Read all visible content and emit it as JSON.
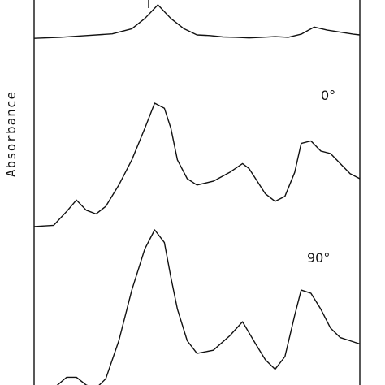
{
  "chart_data": {
    "type": "line",
    "ylabel": "Absorbance",
    "xlabel": "",
    "title": "",
    "grid": false,
    "legend": "none",
    "series": [
      {
        "label": "",
        "x": [
          0,
          0.08,
          0.16,
          0.24,
          0.3,
          0.34,
          0.38,
          0.42,
          0.46,
          0.5,
          0.54,
          0.58,
          0.62,
          0.66,
          0.7,
          0.74,
          0.78,
          0.82,
          0.86,
          0.9,
          0.94,
          0.98,
          1.0
        ],
        "y": [
          0.02,
          0.05,
          0.1,
          0.15,
          0.3,
          0.6,
          1.0,
          0.6,
          0.3,
          0.12,
          0.1,
          0.06,
          0.05,
          0.03,
          0.05,
          0.07,
          0.05,
          0.14,
          0.35,
          0.26,
          0.2,
          0.14,
          0.12
        ]
      },
      {
        "label": "0°",
        "x": [
          0,
          0.06,
          0.1,
          0.13,
          0.16,
          0.19,
          0.22,
          0.26,
          0.3,
          0.34,
          0.37,
          0.4,
          0.42,
          0.44,
          0.47,
          0.5,
          0.55,
          0.6,
          0.64,
          0.66,
          0.68,
          0.71,
          0.74,
          0.77,
          0.8,
          0.82,
          0.85,
          0.88,
          0.91,
          0.94,
          0.97,
          1.0
        ],
        "y": [
          0.02,
          0.03,
          0.14,
          0.23,
          0.15,
          0.12,
          0.18,
          0.35,
          0.55,
          0.8,
          1.0,
          0.96,
          0.8,
          0.55,
          0.4,
          0.35,
          0.38,
          0.45,
          0.52,
          0.48,
          0.4,
          0.28,
          0.22,
          0.26,
          0.45,
          0.68,
          0.7,
          0.62,
          0.6,
          0.52,
          0.44,
          0.4
        ]
      },
      {
        "label": "90°",
        "x": [
          0,
          0.06,
          0.1,
          0.13,
          0.16,
          0.19,
          0.22,
          0.26,
          0.3,
          0.34,
          0.37,
          0.4,
          0.42,
          0.44,
          0.47,
          0.5,
          0.55,
          0.6,
          0.64,
          0.66,
          0.68,
          0.71,
          0.74,
          0.77,
          0.8,
          0.82,
          0.85,
          0.88,
          0.91,
          0.94,
          0.97,
          1.0
        ],
        "y": [
          0.0,
          0.0,
          0.07,
          0.07,
          0.02,
          0.0,
          0.06,
          0.3,
          0.62,
          0.88,
          1.0,
          0.92,
          0.7,
          0.5,
          0.3,
          0.22,
          0.24,
          0.33,
          0.42,
          0.35,
          0.28,
          0.18,
          0.12,
          0.2,
          0.46,
          0.62,
          0.6,
          0.5,
          0.38,
          0.32,
          0.3,
          0.28
        ]
      }
    ],
    "annotations": [
      "0°",
      "90°"
    ]
  }
}
